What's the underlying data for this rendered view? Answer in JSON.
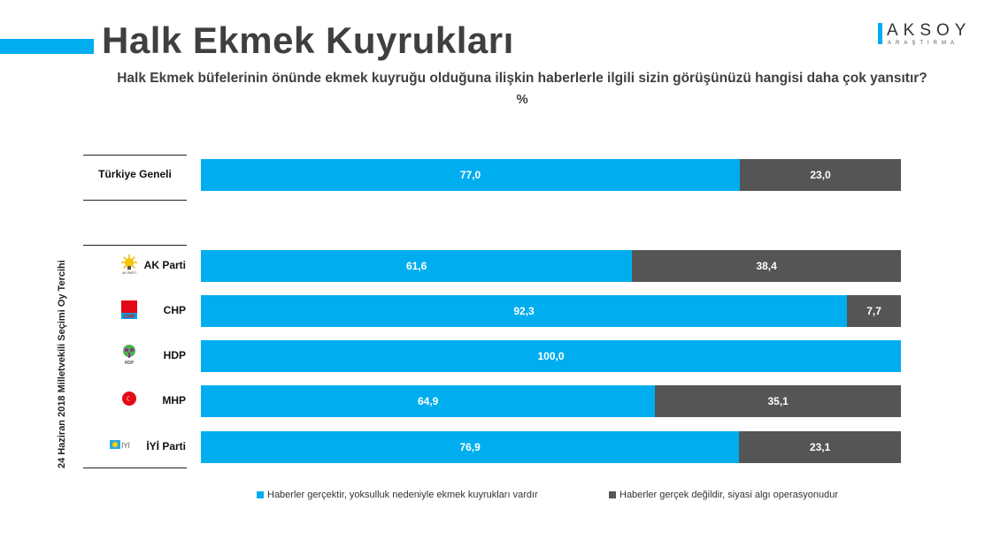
{
  "header": {
    "title": "Halk Ekmek Kuyrukları",
    "logo_text": "AKSOY",
    "logo_sub": "ARAŞTIRMA",
    "question": "Halk Ekmek büfelerinin önünde ekmek kuyruğu olduğuna ilişkin haberlerle ilgili sizin görüşünüzü hangisi daha çok yansıtır?",
    "unit": "%"
  },
  "chart_data": {
    "type": "bar",
    "orientation": "horizontal",
    "stacked": true,
    "xlim": [
      0,
      100
    ],
    "group_label": "24 Haziran 2018 Milletvekili Seçimi Oy Tercihi",
    "categories": [
      "Türkiye Geneli",
      "AK Parti",
      "CHP",
      "HDP",
      "MHP",
      "İYİ Parti"
    ],
    "series": [
      {
        "name": "Haberler gerçektir, yoksulluk nedeniyle ekmek kuyrukları vardır",
        "color": "#00AEEF",
        "values": [
          77.0,
          61.6,
          92.3,
          100.0,
          64.9,
          76.9
        ],
        "labels": [
          "77,0",
          "61,6",
          "92,3",
          "100,0",
          "64,9",
          "76,9"
        ]
      },
      {
        "name": "Haberler gerçek değildir, siyasi algı operasyonudur",
        "color": "#555555",
        "values": [
          23.0,
          38.4,
          7.7,
          0,
          35.1,
          23.1
        ],
        "labels": [
          "23,0",
          "38,4",
          "7,7",
          "",
          "35,1",
          "23,1"
        ]
      }
    ],
    "legend_position": "bottom",
    "grid": false
  },
  "logos": [
    "ak-parti-logo",
    "chp-logo",
    "hdp-logo",
    "mhp-logo",
    "iyi-parti-logo"
  ]
}
